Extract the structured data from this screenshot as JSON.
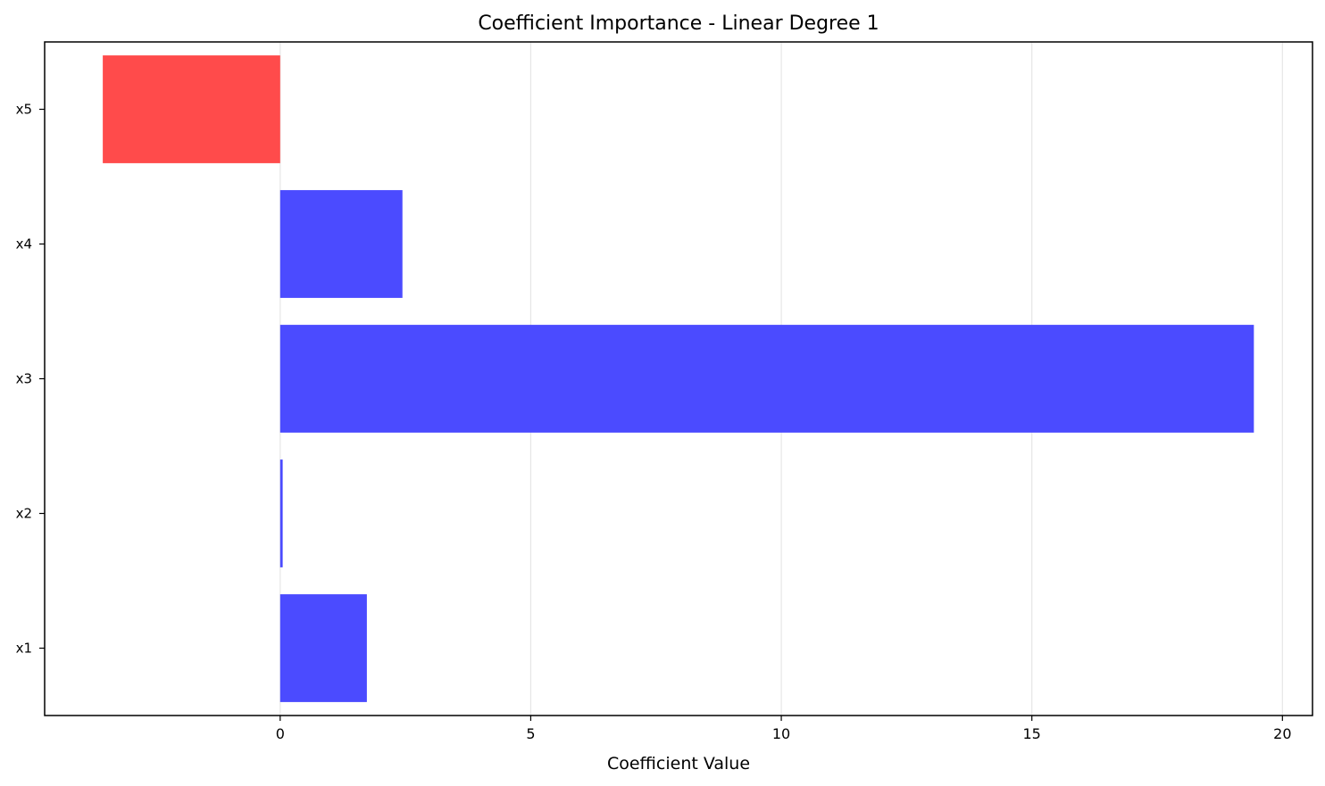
{
  "chart_data": {
    "type": "bar",
    "orientation": "horizontal",
    "title": "Coefficient Importance - Linear Degree 1",
    "xlabel": "Coefficient Value",
    "ylabel": "",
    "categories": [
      "x1",
      "x2",
      "x3",
      "x4",
      "x5"
    ],
    "values": [
      1.73,
      0.05,
      19.43,
      2.44,
      -3.54
    ],
    "xlim": [
      -4.7,
      20.6
    ],
    "xticks": [
      0,
      5,
      10,
      15,
      20
    ],
    "grid": "vertical",
    "legend": "none",
    "colors": {
      "positive": "#4b4bff",
      "negative": "#ff4b4b",
      "grid": "#e6e6e6",
      "axis": "#000000"
    }
  }
}
